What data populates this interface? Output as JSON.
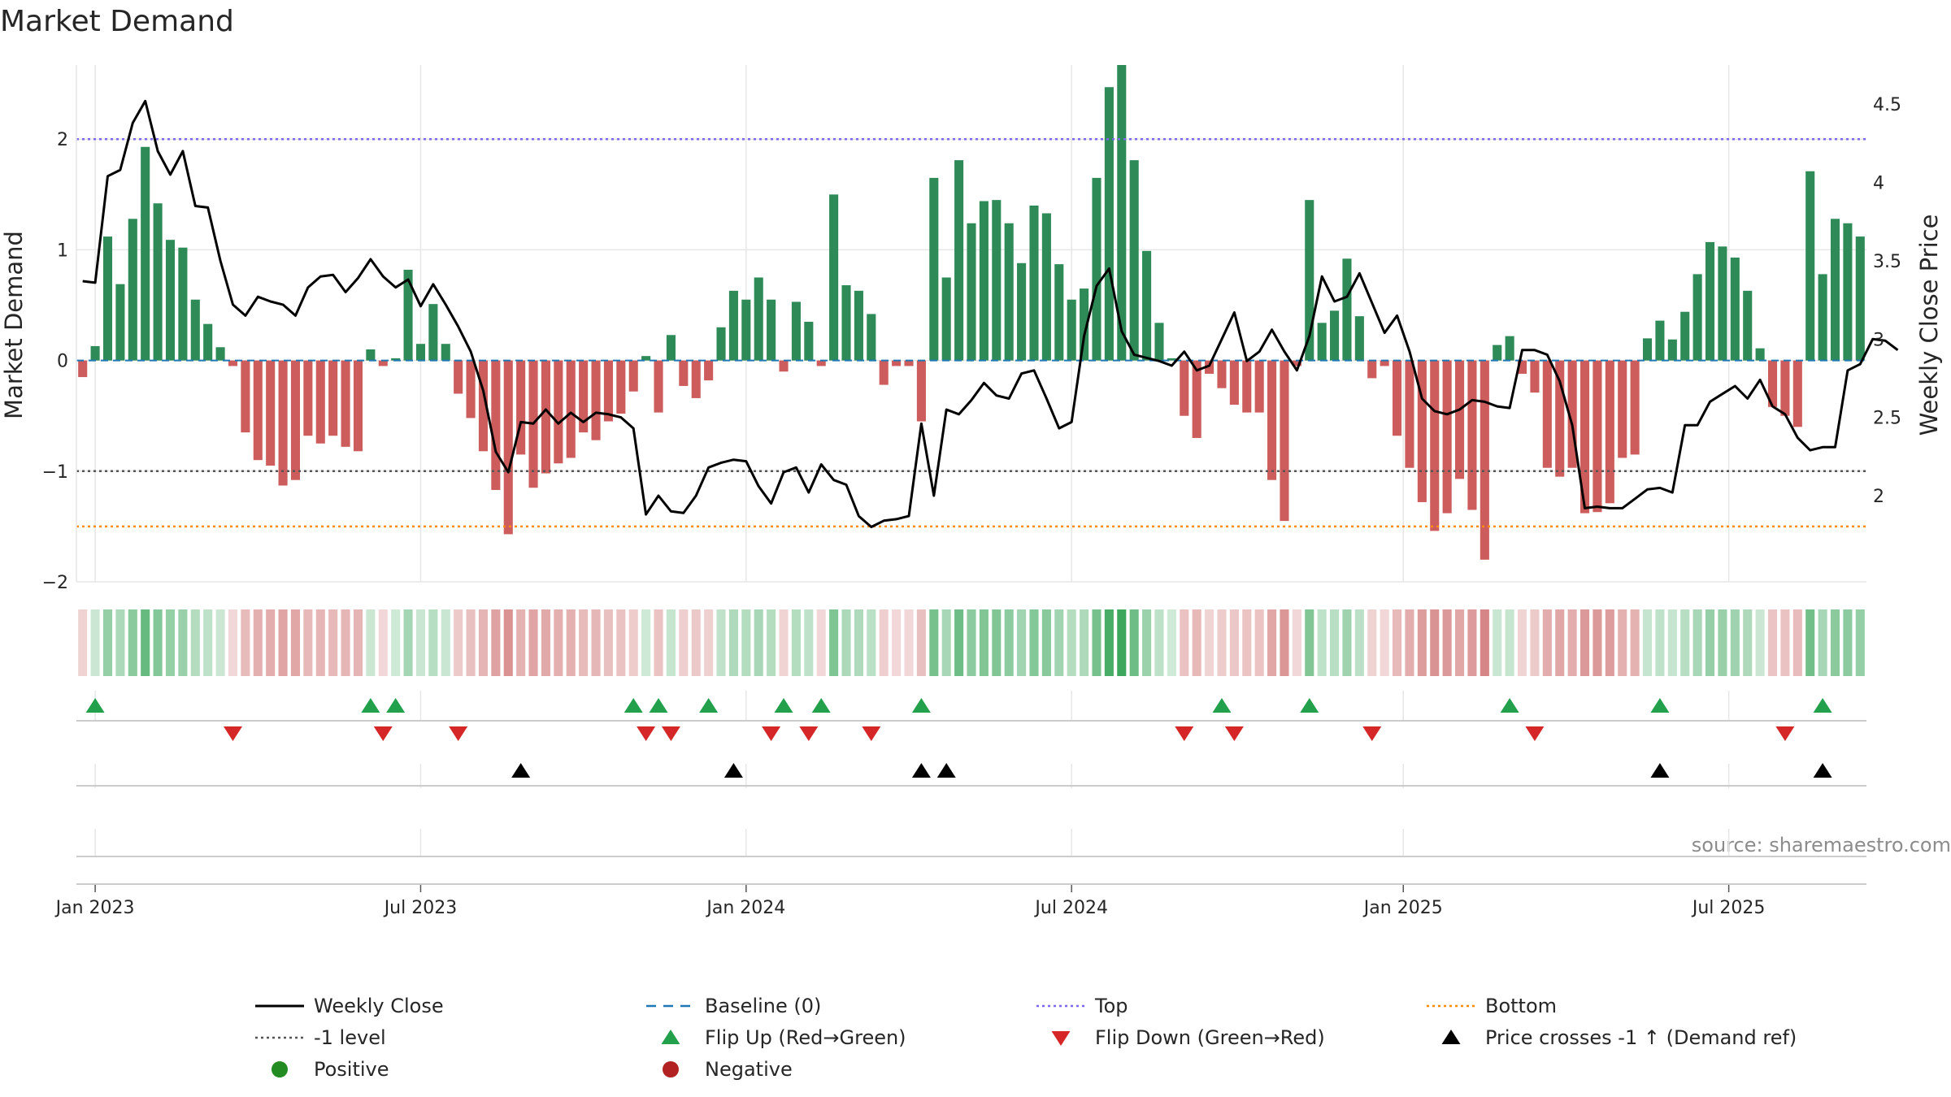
{
  "colors": {
    "positive": "#2e8b57",
    "negative": "#cd5c5c",
    "price": "#000000",
    "baseline": "#1f77b4",
    "top": "#7b68ee",
    "bottom": "#ff8c00",
    "minus1": "#555555",
    "flip_up": "#22a04b",
    "flip_down": "#d62728",
    "grid": "#e6e6e6",
    "axis": "#cccccc"
  },
  "chart_data": {
    "type": "bar",
    "title": "Market Demand",
    "ylabel": "Market Demand",
    "y2label": "Weekly Close Price",
    "source": "source: sharemaestro.com",
    "ylim": [
      -2.0,
      2.67
    ],
    "y2lim": [
      1.45,
      4.75
    ],
    "yticks": [
      {
        "v": -2,
        "label": "−2"
      },
      {
        "v": -1,
        "label": "−1"
      },
      {
        "v": 0,
        "label": "0"
      },
      {
        "v": 1,
        "label": "1"
      },
      {
        "v": 2,
        "label": "2"
      }
    ],
    "y2ticks": [
      {
        "v": 2,
        "label": "2"
      },
      {
        "v": 2.5,
        "label": "2.5"
      },
      {
        "v": 3,
        "label": "3"
      },
      {
        "v": 3.5,
        "label": "3.5"
      },
      {
        "v": 4,
        "label": "4"
      },
      {
        "v": 4.5,
        "label": "4.5"
      }
    ],
    "xticks": [
      {
        "i": 1.5,
        "label": "Jan 2023"
      },
      {
        "i": 27.5,
        "label": "Jul 2023"
      },
      {
        "i": 53.5,
        "label": "Jan 2024"
      },
      {
        "i": 79.5,
        "label": "Jul 2024"
      },
      {
        "i": 106,
        "label": "Jan 2025"
      },
      {
        "i": 132,
        "label": "Jul 2025"
      }
    ],
    "levels": {
      "top": 2.0,
      "minus1": -1.0,
      "bottom": -1.5,
      "baseline": 0
    },
    "demand": [
      -0.15,
      0.13,
      1.12,
      0.69,
      1.28,
      1.93,
      1.42,
      1.09,
      1.02,
      0.55,
      0.33,
      0.12,
      -0.05,
      -0.65,
      -0.9,
      -0.95,
      -1.13,
      -1.08,
      -0.68,
      -0.75,
      -0.68,
      -0.78,
      -0.82,
      0.1,
      -0.05,
      0.02,
      0.82,
      0.15,
      0.51,
      0.15,
      -0.3,
      -0.52,
      -0.82,
      -1.17,
      -1.57,
      -0.85,
      -1.15,
      -1.02,
      -0.93,
      -0.88,
      -0.65,
      -0.72,
      -0.55,
      -0.48,
      -0.28,
      0.04,
      -0.47,
      0.23,
      -0.23,
      -0.34,
      -0.18,
      0.3,
      0.63,
      0.55,
      0.75,
      0.55,
      -0.1,
      0.53,
      0.35,
      -0.05,
      1.5,
      0.68,
      0.63,
      0.42,
      -0.22,
      -0.05,
      -0.05,
      -0.55,
      1.65,
      0.75,
      1.81,
      1.24,
      1.44,
      1.45,
      1.24,
      0.88,
      1.4,
      1.33,
      0.87,
      0.55,
      0.65,
      1.65,
      2.47,
      2.67,
      1.81,
      0.99,
      0.34,
      0.02,
      -0.5,
      -0.7,
      -0.12,
      -0.25,
      -0.4,
      -0.47,
      -0.47,
      -1.08,
      -1.45,
      -0.05,
      1.45,
      0.34,
      0.45,
      0.92,
      0.4,
      -0.16,
      -0.05,
      -0.68,
      -0.97,
      -1.28,
      -1.54,
      -1.38,
      -1.07,
      -1.35,
      -1.8,
      0.14,
      0.22,
      -0.12,
      -0.29,
      -0.97,
      -1.05,
      -0.97,
      -1.38,
      -1.37,
      -1.29,
      -0.88,
      -0.85,
      0.2,
      0.36,
      0.19,
      0.44,
      0.78,
      1.07,
      1.03,
      0.93,
      0.63,
      0.11,
      -0.42,
      -0.5,
      -0.6,
      1.71,
      0.78,
      1.28,
      1.24,
      1.12
    ],
    "price": [
      3.37,
      3.36,
      4.04,
      4.08,
      4.38,
      4.52,
      4.2,
      4.05,
      4.2,
      3.85,
      3.84,
      3.5,
      3.22,
      3.15,
      3.27,
      3.24,
      3.22,
      3.15,
      3.33,
      3.4,
      3.41,
      3.3,
      3.39,
      3.51,
      3.4,
      3.33,
      3.38,
      3.21,
      3.35,
      3.22,
      3.08,
      2.92,
      2.67,
      2.28,
      2.15,
      2.47,
      2.46,
      2.55,
      2.46,
      2.53,
      2.47,
      2.53,
      2.52,
      2.5,
      2.43,
      1.88,
      2.0,
      1.9,
      1.89,
      2.0,
      2.18,
      2.21,
      2.23,
      2.22,
      2.06,
      1.95,
      2.15,
      2.18,
      2.02,
      2.2,
      2.1,
      2.07,
      1.87,
      1.8,
      1.84,
      1.85,
      1.87,
      2.46,
      2.0,
      2.55,
      2.52,
      2.61,
      2.72,
      2.64,
      2.62,
      2.78,
      2.8,
      2.62,
      2.43,
      2.47,
      3.02,
      3.34,
      3.45,
      3.05,
      2.9,
      2.88,
      2.86,
      2.83,
      2.92,
      2.8,
      2.83,
      3.0,
      3.17,
      2.86,
      2.92,
      3.06,
      2.92,
      2.8,
      3.02,
      3.4,
      3.24,
      3.27,
      3.42,
      3.23,
      3.04,
      3.15,
      2.92,
      2.62,
      2.54,
      2.52,
      2.55,
      2.61,
      2.6,
      2.57,
      2.56,
      2.93,
      2.93,
      2.9,
      2.73,
      2.45,
      1.92,
      1.93,
      1.92,
      1.92,
      1.98,
      2.04,
      2.05,
      2.02,
      2.45,
      2.45,
      2.6,
      2.65,
      2.7,
      2.62,
      2.74,
      2.57,
      2.52,
      2.37,
      2.29,
      2.31,
      2.31,
      2.8,
      2.84,
      3.0,
      2.99,
      2.93
    ],
    "flip_up_idx": [
      1,
      23,
      25,
      44,
      46,
      50,
      56,
      59,
      67,
      91,
      98,
      114,
      126,
      139
    ],
    "flip_down_idx": [
      12,
      24,
      30,
      45,
      47,
      55,
      58,
      63,
      88,
      92,
      103,
      116,
      136
    ],
    "cross_idx": [
      35,
      52,
      67,
      69,
      126,
      139
    ]
  },
  "legend": [
    {
      "label": "Weekly Close",
      "symbol": "line-solid",
      "color": "#000000"
    },
    {
      "label": "Baseline (0)",
      "symbol": "line-dash",
      "color": "#1f77b4"
    },
    {
      "label": "Top",
      "symbol": "line-dot",
      "color": "#7b68ee"
    },
    {
      "label": "Bottom",
      "symbol": "line-dot",
      "color": "#ff8c00"
    },
    {
      "label": "-1 level",
      "symbol": "line-dot",
      "color": "#555555"
    },
    {
      "label": "Flip Up (Red→Green)",
      "symbol": "triangle-up",
      "color": "#22a04b"
    },
    {
      "label": "Flip Down (Green→Red)",
      "symbol": "triangle-down",
      "color": "#d62728"
    },
    {
      "label": "Price crosses -1 ↑ (Demand ref)",
      "symbol": "triangle-up",
      "color": "#000000"
    },
    {
      "label": "Positive",
      "symbol": "circle",
      "color": "#228b22"
    },
    {
      "label": "Negative",
      "symbol": "circle",
      "color": "#b22222"
    }
  ]
}
